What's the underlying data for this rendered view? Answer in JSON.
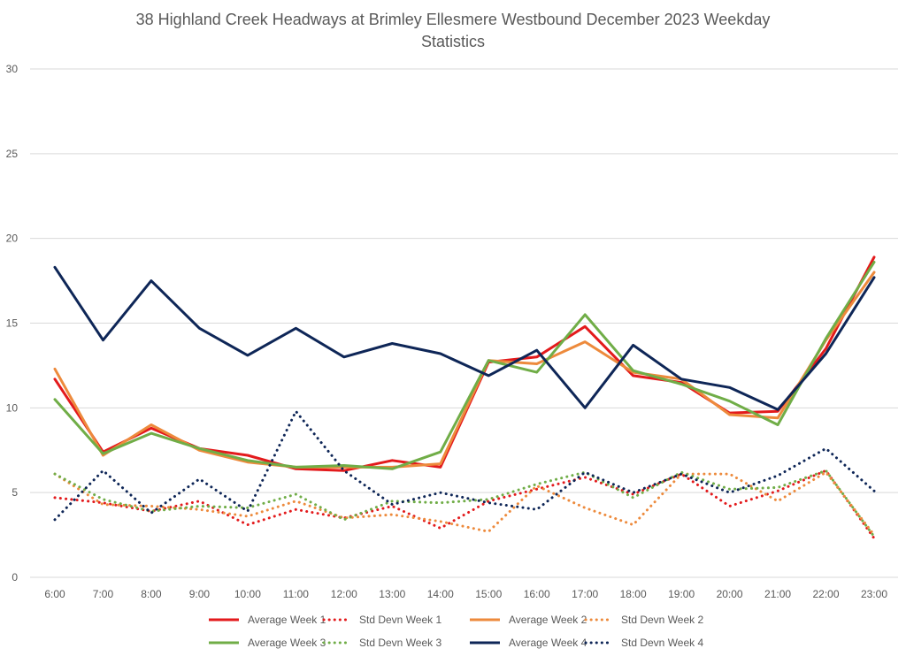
{
  "chart_data": {
    "type": "line",
    "title": "38 Highland Creek Headways at Brimley Ellesmere Westbound December 2023 Weekday Statistics",
    "title_lines": [
      "38 Highland Creek Headways at Brimley Ellesmere Westbound December 2023 Weekday",
      "Statistics"
    ],
    "xlabel": "",
    "ylabel": "",
    "ylim": [
      0,
      30
    ],
    "yticks": [
      0,
      5,
      10,
      15,
      20,
      25,
      30
    ],
    "grid": true,
    "legend_position": "bottom",
    "categories": [
      "6:00",
      "7:00",
      "8:00",
      "9:00",
      "10:00",
      "11:00",
      "12:00",
      "13:00",
      "14:00",
      "15:00",
      "16:00",
      "17:00",
      "18:00",
      "19:00",
      "20:00",
      "21:00",
      "22:00",
      "23:00"
    ],
    "series": [
      {
        "name": "Average Week 1",
        "color": "#e31a1c",
        "style": "solid",
        "values": [
          11.7,
          7.4,
          8.8,
          7.6,
          7.2,
          6.4,
          6.3,
          6.9,
          6.5,
          12.7,
          13.0,
          14.8,
          11.9,
          11.5,
          9.7,
          9.8,
          13.5,
          18.9
        ]
      },
      {
        "name": "Std Devn Week 1",
        "color": "#e31a1c",
        "style": "dotted",
        "values": [
          4.7,
          4.4,
          3.9,
          4.5,
          3.1,
          4.0,
          3.5,
          4.2,
          2.9,
          4.5,
          5.2,
          5.9,
          4.9,
          6.1,
          4.2,
          5.1,
          6.3,
          2.3
        ]
      },
      {
        "name": "Average Week 2",
        "color": "#ed8a3c",
        "style": "solid",
        "values": [
          12.3,
          7.2,
          9.0,
          7.5,
          6.8,
          6.5,
          6.5,
          6.5,
          6.7,
          12.8,
          12.6,
          13.9,
          12.1,
          11.7,
          9.6,
          9.4,
          14.0,
          18.0
        ]
      },
      {
        "name": "Std Devn Week 2",
        "color": "#ed8a3c",
        "style": "dotted",
        "values": [
          6.1,
          4.3,
          4.2,
          4.0,
          3.6,
          4.5,
          3.5,
          3.7,
          3.3,
          2.7,
          5.4,
          4.1,
          3.1,
          6.1,
          6.1,
          4.5,
          6.2,
          2.5
        ]
      },
      {
        "name": "Average Week 3",
        "color": "#70ad47",
        "style": "solid",
        "values": [
          10.5,
          7.3,
          8.5,
          7.6,
          6.9,
          6.5,
          6.6,
          6.4,
          7.4,
          12.8,
          12.1,
          15.5,
          12.2,
          11.4,
          10.4,
          9.0,
          14.1,
          18.6
        ]
      },
      {
        "name": "Std Devn Week 3",
        "color": "#70ad47",
        "style": "dotted",
        "values": [
          6.1,
          4.6,
          3.9,
          4.2,
          4.1,
          4.9,
          3.4,
          4.5,
          4.4,
          4.6,
          5.5,
          6.2,
          4.7,
          6.2,
          5.2,
          5.3,
          6.3,
          2.4
        ]
      },
      {
        "name": "Average Week 4",
        "color": "#0e2657",
        "style": "solid",
        "values": [
          18.3,
          14.0,
          17.5,
          14.7,
          13.1,
          14.7,
          13.0,
          13.8,
          13.2,
          11.9,
          13.4,
          10.0,
          13.7,
          11.7,
          11.2,
          9.9,
          13.2,
          17.7
        ]
      },
      {
        "name": "Std Devn Week 4",
        "color": "#0e2657",
        "style": "dotted",
        "values": [
          3.4,
          6.3,
          3.8,
          5.8,
          3.9,
          9.8,
          6.3,
          4.3,
          5.0,
          4.4,
          4.0,
          6.2,
          5.0,
          6.1,
          5.0,
          6.0,
          7.6,
          5.1
        ]
      }
    ]
  }
}
